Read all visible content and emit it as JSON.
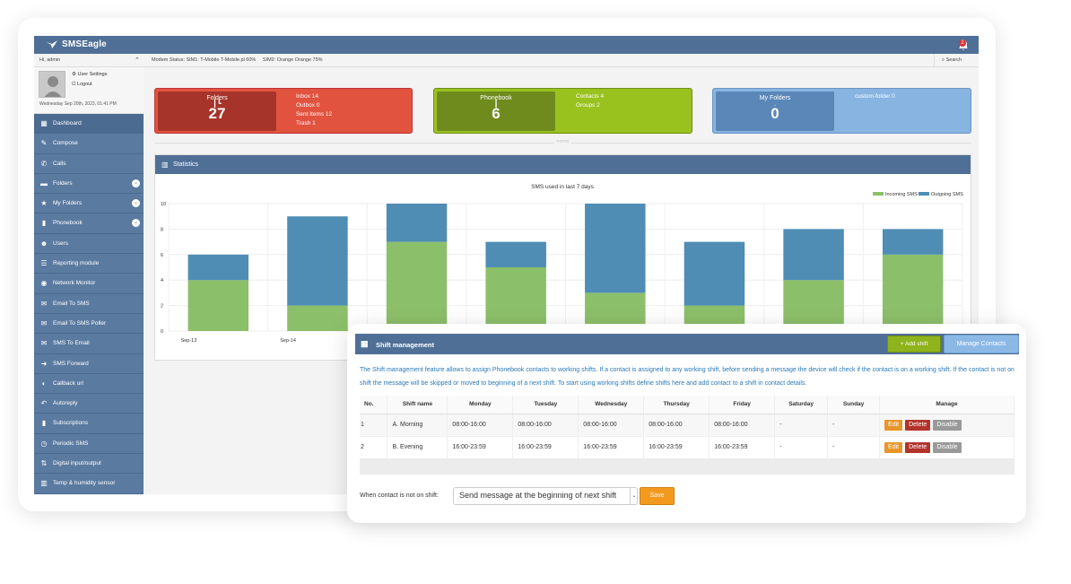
{
  "app": {
    "title": "SMSEagle",
    "notif_count": "2"
  },
  "status": {
    "greeting": "Hi, admin",
    "modem": "Modem Status: SIM1: T-Mobile T-Mobile.pl 60%     SIM2: Orange Orange 75%",
    "search": "Search"
  },
  "profile": {
    "settings": "User Settings",
    "logout": "Logout",
    "date": "Wednesday Sep 20th, 2023, 01:41 PM"
  },
  "nav": [
    {
      "label": "Dashboard",
      "icon": "dashboard-icon",
      "glyph": "▦"
    },
    {
      "label": "Compose",
      "icon": "pencil-icon",
      "glyph": "✎"
    },
    {
      "label": "Calls",
      "icon": "phone-icon",
      "glyph": "✆"
    },
    {
      "label": "Folders",
      "icon": "folder-icon",
      "glyph": "▬",
      "expand": true
    },
    {
      "label": "My Folders",
      "icon": "star-icon",
      "glyph": "★",
      "expand": true
    },
    {
      "label": "Phonebook",
      "icon": "book-icon",
      "glyph": "▮",
      "expand": true
    },
    {
      "label": "Users",
      "icon": "users-icon",
      "glyph": "☻"
    },
    {
      "label": "Reporting module",
      "icon": "list-icon",
      "glyph": "☰"
    },
    {
      "label": "Network Monitor",
      "icon": "network-icon",
      "glyph": "◉"
    },
    {
      "label": "Email To SMS",
      "icon": "envelope-icon",
      "glyph": "✉"
    },
    {
      "label": "Email To SMS Poller",
      "icon": "envelope-icon",
      "glyph": "✉"
    },
    {
      "label": "SMS To Email",
      "icon": "envelope-icon",
      "glyph": "✉"
    },
    {
      "label": "SMS Forward",
      "icon": "arrow-right-icon",
      "glyph": "➜"
    },
    {
      "label": "Callback url",
      "icon": "callback-icon",
      "glyph": "◐"
    },
    {
      "label": "Autoreply",
      "icon": "reply-icon",
      "glyph": "↶"
    },
    {
      "label": "Subscriptions",
      "icon": "bookmark-icon",
      "glyph": "▮"
    },
    {
      "label": "Periodic SMS",
      "icon": "clock-icon",
      "glyph": "◷"
    },
    {
      "label": "Digital input/output",
      "icon": "sync-icon",
      "glyph": "⇅"
    },
    {
      "label": "Temp & humidity sensor",
      "icon": "bar-chart-icon",
      "glyph": "▥"
    }
  ],
  "tiles": {
    "folders": {
      "title": "Folders",
      "value": "27",
      "info": [
        "Inbox 14",
        "Outbox 0",
        "Sent Items 12",
        "Trash 1"
      ]
    },
    "phonebook": {
      "title": "Phonebook",
      "value": "6",
      "info": [
        "Contacts 4",
        "Groups 2"
      ]
    },
    "myfolders": {
      "title": "My Folders",
      "value": "0",
      "info": [
        "custom-folder 0"
      ]
    }
  },
  "stats": {
    "title": "Statistics"
  },
  "chart_data": {
    "type": "bar",
    "title": "SMS used in last 7 days",
    "categories": [
      "Sep-13",
      "Sep-14",
      "",
      "",
      "",
      "",
      "",
      ""
    ],
    "series": [
      {
        "name": "Incoming SMS",
        "values": [
          4,
          2,
          7,
          5,
          3,
          2,
          4,
          6
        ],
        "color": "#8cbf6a"
      },
      {
        "name": "Outgoing SMS",
        "values": [
          2,
          7,
          3,
          2,
          7,
          5,
          4,
          2
        ],
        "color": "#4f8db5"
      }
    ],
    "stacked": true,
    "ylim": [
      0,
      10
    ],
    "yticks": [
      0,
      2,
      4,
      6,
      8,
      10
    ],
    "legend": "top-right"
  },
  "shift": {
    "title": "Shift management",
    "add_label": "+ Add shift",
    "manage_label": "Manage Contacts",
    "description": "The Shift management feature allows to assign Phonebook contacts to working shifts. If a contact is assigned to any working shift, before sending a message the device will check if the contact is on a working shift. If the contact is not on shift the message will be skipped or moved to beginning of a next shift. To start using working shifts define shifts here and add contact to a shift in contact details.",
    "columns": [
      "No.",
      "Shift name",
      "Monday",
      "Tuesday",
      "Wednesday",
      "Thursday",
      "Friday",
      "Saturday",
      "Sunday",
      "Manage"
    ],
    "rows": [
      [
        "1",
        "A. Morning",
        "08:00-16:00",
        "08:00-16:00",
        "08:00-16:00",
        "08:00-16:00",
        "08:00-16:00",
        "-",
        "-"
      ],
      [
        "2",
        "B. Evening",
        "16:00-23:59",
        "16:00-23:59",
        "16:00-23:59",
        "16:00-23:59",
        "16:00-23:59",
        "-",
        "-"
      ]
    ],
    "actions": {
      "edit": "Edit",
      "delete": "Delete",
      "disable": "Disable"
    },
    "footer_label": "When contact is not on shift:",
    "select_value": "Send message at the beginning of next shift",
    "save_label": "Save"
  }
}
